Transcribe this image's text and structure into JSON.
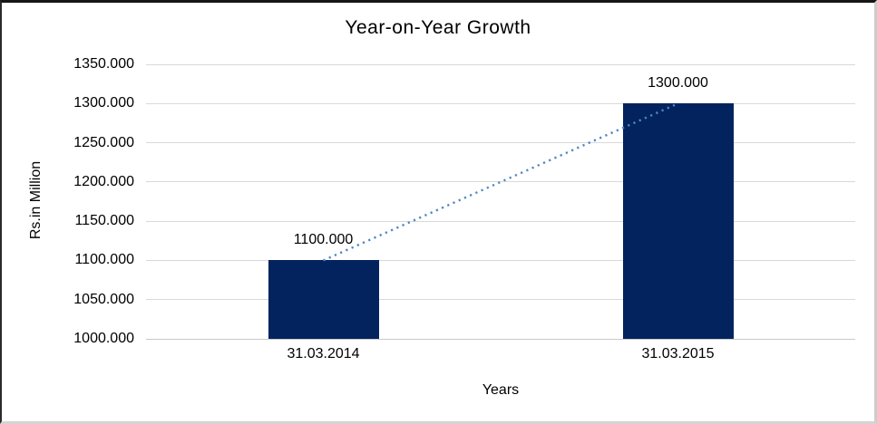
{
  "chart_data": {
    "type": "bar",
    "title": "Year-on-Year Growth",
    "xlabel": "Years",
    "ylabel": "Rs.in Million",
    "categories": [
      "31.03.2014",
      "31.03.2015"
    ],
    "values": [
      1100,
      1300
    ],
    "data_labels": [
      "1100.000",
      "1300.000"
    ],
    "ylim": [
      1000,
      1350
    ],
    "ytick_step": 50,
    "ytick_labels": [
      "1000.000",
      "1050.000",
      "1100.000",
      "1150.000",
      "1200.000",
      "1250.000",
      "1300.000",
      "1350.000"
    ],
    "grid": "horizontal",
    "legend_position": "none",
    "trendline": {
      "style": "dotted",
      "connects": [
        1100,
        1300
      ]
    },
    "colors": {
      "bar": "#02235e",
      "trendline": "#4e86c5",
      "gridline": "#d9d9d9",
      "axis_line": "#c9c9c9",
      "text": "#000000",
      "background": "#ffffff"
    }
  }
}
